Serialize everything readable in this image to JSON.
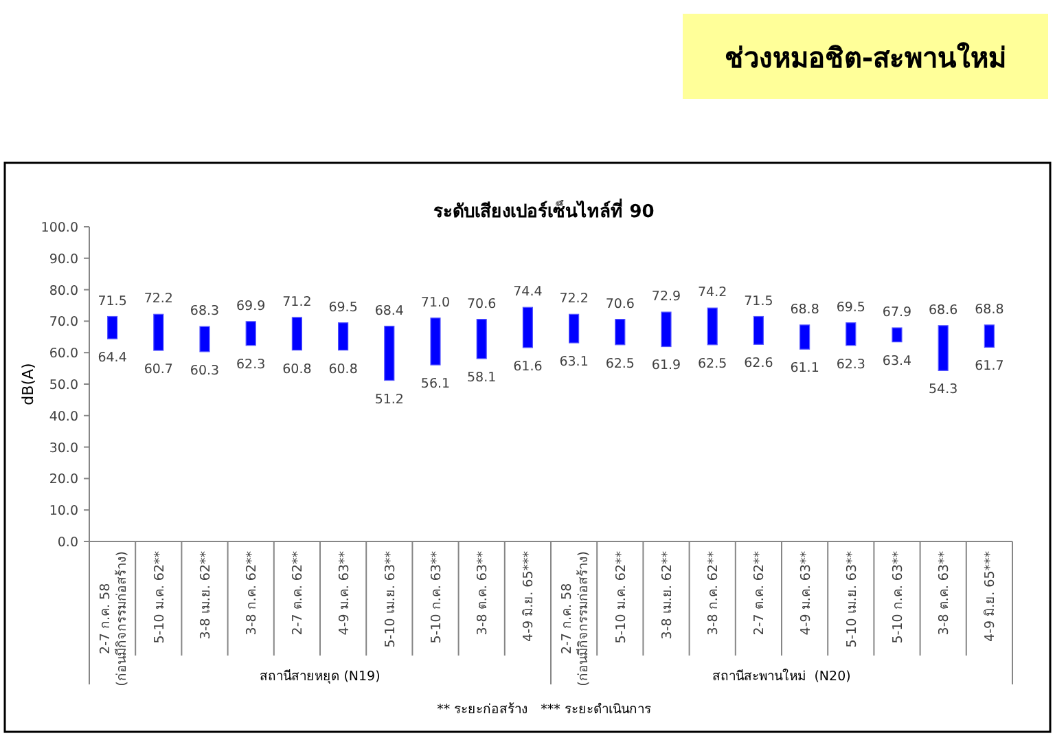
{
  "chart_data": [
    {
      "type": "bar",
      "subtitle": "ระดับเสียงเปอร์เซ็นไทล์ที่ 90",
      "ylabel": "dB(A)",
      "xlabel": "สถานีสายหยุด (N19)",
      "categories": [
        "2-7 ก.ค. 58\n(ก่อนมีกิจกรรมก่อสร้าง)",
        "5-10 ม.ค. 62**",
        "3-8 เม.ย. 62**",
        "3-8 ก.ค. 62**",
        "2-7 ต.ค. 62**",
        "4-9 ม.ค. 63**",
        "5-10 เม.ย. 63**",
        "5-10 ก.ค. 63**",
        "3-8 ต.ค. 63**",
        "4-9 มิ.ย. 65***"
      ],
      "base": [
        64.4,
        60.7,
        60.3,
        62.3,
        60.8,
        60.8,
        51.2,
        56.1,
        58.1,
        61.6
      ],
      "values": [
        7.1,
        11.5,
        8.0,
        7.6,
        10.4,
        8.7,
        17.2,
        14.9,
        12.5,
        12.8
      ],
      "value_labels": [
        "71.5",
        "72.2",
        "68.3",
        "69.9",
        "71.2",
        "69.5",
        "68.4",
        "71.0",
        "70.6",
        "74.4"
      ],
      "color": "#0000ff",
      "ylim": [
        0,
        100
      ],
      "yticks": [
        {
          "value": 0,
          "label": "0.0"
        },
        {
          "value": 10,
          "label": "10.0"
        },
        {
          "value": 20,
          "label": "20.0"
        },
        {
          "value": 30,
          "label": "30.0"
        },
        {
          "value": 40,
          "label": "40.0"
        },
        {
          "value": 50,
          "label": "50.0"
        },
        {
          "value": 60,
          "label": "60.0"
        },
        {
          "value": 70,
          "label": "70.0"
        },
        {
          "value": 80,
          "label": "80.0"
        },
        {
          "value": 90,
          "label": "90.0"
        },
        {
          "value": 100,
          "label": "100.0"
        }
      ],
      "annotations": [
        {
          "text": "64.4",
          "x": "2-7 ก.ค. 58\n(ก่อนมีกิจกรรมก่อสร้าง)",
          "y": 64.4
        },
        {
          "text": "60.7",
          "x": "5-10 ม.ค. 62**",
          "y": 60.7
        },
        {
          "text": "60.3",
          "x": "3-8 เม.ย. 62**",
          "y": 60.3
        },
        {
          "text": "62.3",
          "x": "3-8 ก.ค. 62**",
          "y": 62.3
        },
        {
          "text": "60.8",
          "x": "2-7 ต.ค. 62**",
          "y": 60.8
        },
        {
          "text": "60.8",
          "x": "4-9 ม.ค. 63**",
          "y": 60.8
        },
        {
          "text": "51.2",
          "x": "5-10 เม.ย. 63**",
          "y": 51.2
        },
        {
          "text": "56.1",
          "x": "5-10 ก.ค. 63**",
          "y": 56.1
        },
        {
          "text": "58.1",
          "x": "3-8 ต.ค. 63**",
          "y": 58.1
        },
        {
          "text": "61.6",
          "x": "4-9 มิ.ย. 65***",
          "y": 61.6
        },
        "** ระยะก่อสร้าง   *** ระยะดำเนินการ"
      ]
    },
    {
      "type": "bar",
      "title": "ช่วงหมอชิต-สะพานใหม่",
      "xlabel": "สถานีสะพานใหม่  (N20)",
      "tick_labels": "x",
      "categories": [
        "2-7 ก.ค. 58\n(ก่อนมีกิจกรรมก่อสร้าง)",
        "5-10 ม.ค. 62**",
        "3-8 เม.ย. 62**",
        "3-8 ก.ค. 62**",
        "2-7 ต.ค. 62**",
        "4-9 ม.ค. 63**",
        "5-10 เม.ย. 63**",
        "5-10 ก.ค. 63**",
        "3-8 ต.ค. 63**",
        "4-9 มิ.ย. 65***"
      ],
      "base": [
        63.1,
        62.5,
        61.9,
        62.5,
        62.6,
        61.1,
        62.3,
        63.4,
        54.3,
        61.7
      ],
      "values": [
        9.1,
        8.1,
        11.0,
        11.7,
        8.9,
        7.7,
        7.2,
        4.5,
        14.3,
        7.1
      ],
      "value_labels": [
        "72.2",
        "70.6",
        "72.9",
        "74.2",
        "71.5",
        "68.8",
        "69.5",
        "67.9",
        "68.6",
        "68.8"
      ],
      "color": "#0000ff",
      "ylim": [
        0,
        100
      ],
      "annotations": [
        {
          "text": "63.1",
          "x": "2-7 ก.ค. 58\n(ก่อนมีกิจกรรมก่อสร้าง)",
          "y": 63.1
        },
        {
          "text": "62.5",
          "x": "5-10 ม.ค. 62**",
          "y": 62.5
        },
        {
          "text": "61.9",
          "x": "3-8 เม.ย. 62**",
          "y": 61.9
        },
        {
          "text": "62.5",
          "x": "3-8 ก.ค. 62**",
          "y": 62.5
        },
        {
          "text": "62.6",
          "x": "2-7 ต.ค. 62**",
          "y": 62.6
        },
        {
          "text": "61.1",
          "x": "4-9 ม.ค. 63**",
          "y": 61.1
        },
        {
          "text": "62.3",
          "x": "5-10 เม.ย. 63**",
          "y": 62.3
        },
        {
          "text": "63.4",
          "x": "5-10 ก.ค. 63**",
          "y": 63.4
        },
        {
          "text": "54.3",
          "x": "3-8 ต.ค. 63**",
          "y": 54.3
        },
        {
          "text": "61.7",
          "x": "4-9 มิ.ย. 65***",
          "y": 61.7
        }
      ]
    }
  ]
}
